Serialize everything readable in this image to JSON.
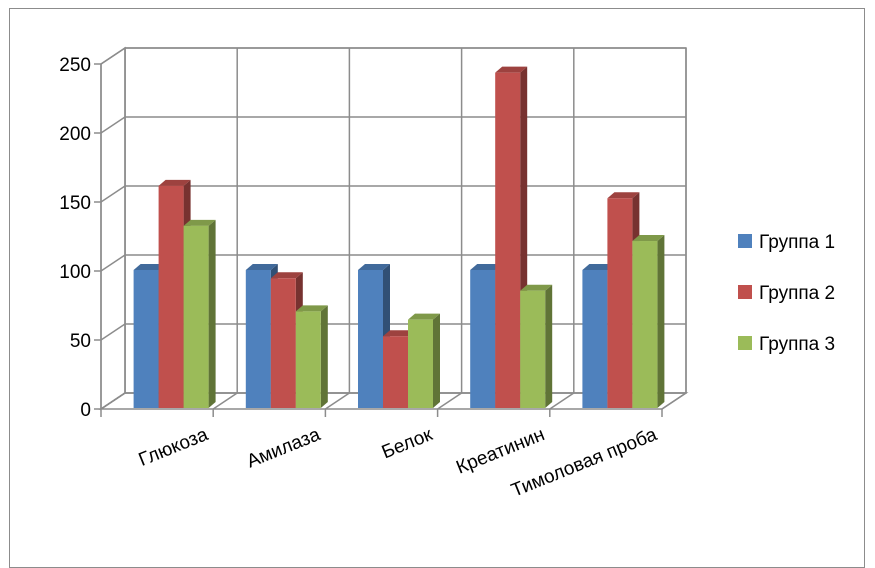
{
  "chart_data": {
    "type": "bar",
    "categories": [
      "Глюкоза",
      "Амилаза",
      "Белок",
      "Креатинин",
      "Тимоловая проба"
    ],
    "series": [
      {
        "name": "Группа 1",
        "values": [
          100,
          100,
          100,
          100,
          100
        ],
        "color": "#4f81bd"
      },
      {
        "name": "Группа 2",
        "values": [
          161,
          94,
          52,
          243,
          152
        ],
        "color": "#c0504d"
      },
      {
        "name": "Группа 3",
        "values": [
          132,
          70,
          64,
          85,
          121
        ],
        "color": "#9bbb59"
      }
    ],
    "y_ticks": [
      "0",
      "50",
      "100",
      "150",
      "200",
      "250"
    ],
    "ylim": [
      0,
      250
    ],
    "grid": true,
    "legend_position": "right",
    "style": "3d-clustered-column"
  }
}
